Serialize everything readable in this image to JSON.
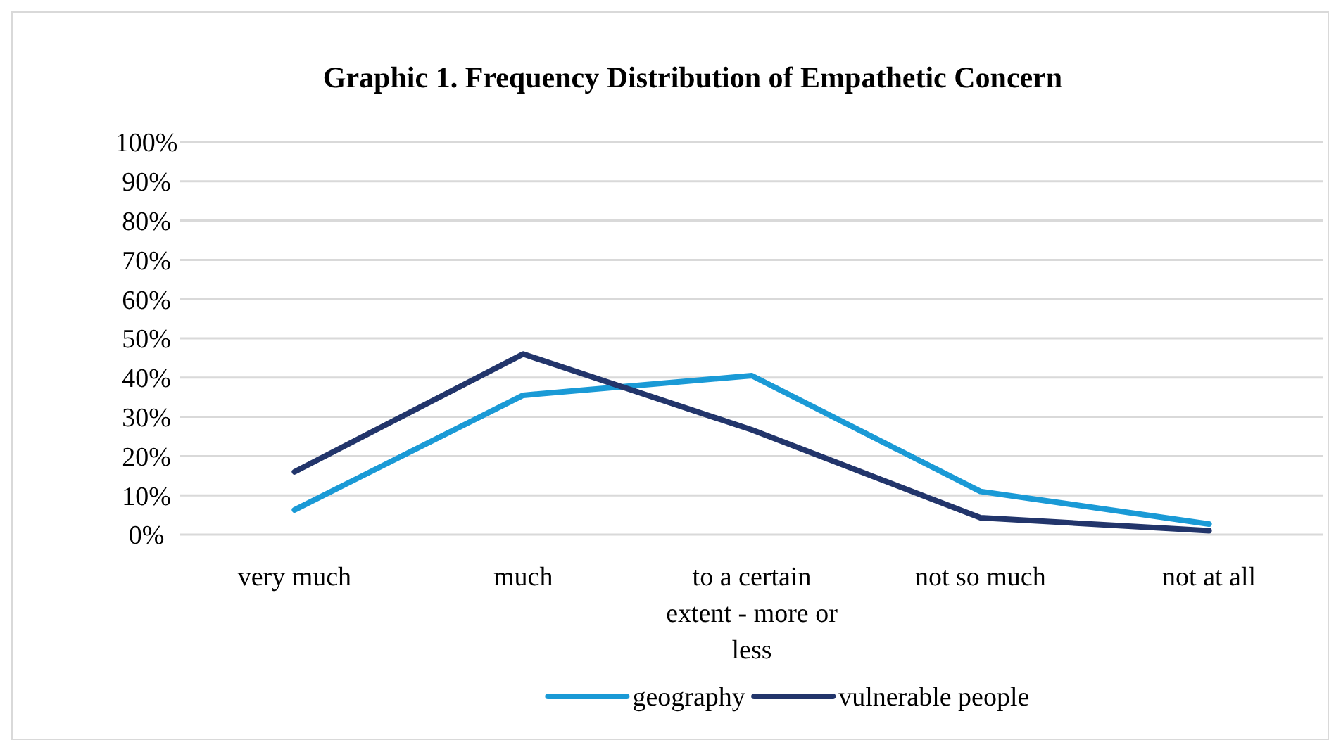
{
  "chart_data": {
    "type": "line",
    "title": "Graphic 1. Frequency Distribution of Empathetic Concern",
    "categories": [
      "very much",
      "much",
      "to a certain extent - more or less",
      "not so much",
      "not at all"
    ],
    "series": [
      {
        "name": "geography",
        "color": "#1a9ad6",
        "values": [
          6.3,
          35.5,
          40.5,
          11,
          2.7
        ]
      },
      {
        "name": "vulnerable people",
        "color": "#22356b",
        "values": [
          16,
          46,
          26.7,
          4.3,
          1
        ]
      }
    ],
    "ylim": [
      0,
      100
    ],
    "yticks": [
      {
        "value": 0,
        "label": "0%"
      },
      {
        "value": 10,
        "label": "10%"
      },
      {
        "value": 20,
        "label": "20%"
      },
      {
        "value": 30,
        "label": "30%"
      },
      {
        "value": 40,
        "label": "40%"
      },
      {
        "value": 50,
        "label": "50%"
      },
      {
        "value": 60,
        "label": "60%"
      },
      {
        "value": 70,
        "label": "70%"
      },
      {
        "value": 80,
        "label": "80%"
      },
      {
        "value": 90,
        "label": "90%"
      },
      {
        "value": 100,
        "label": "100%"
      }
    ],
    "grid": "y",
    "legend": "bottom",
    "marker": "none",
    "line_style": "solid"
  }
}
